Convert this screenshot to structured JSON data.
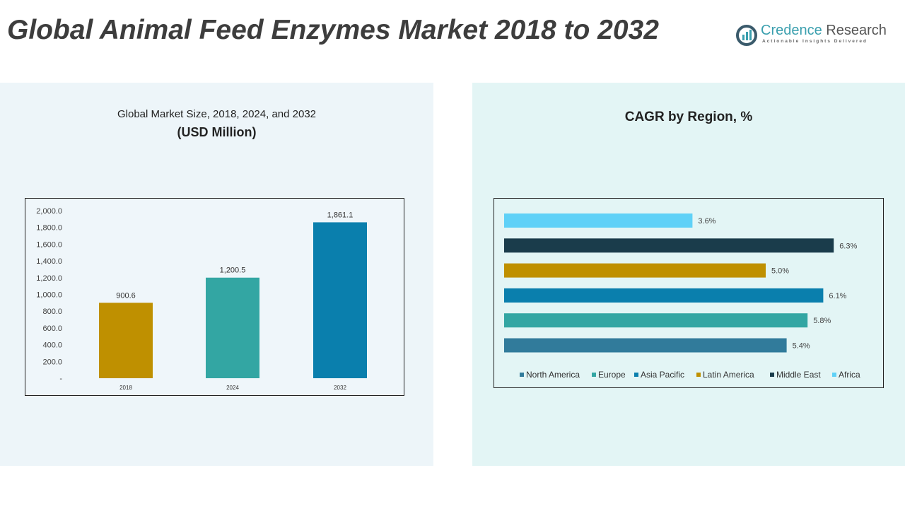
{
  "header": {
    "title": "Global Animal Feed Enzymes Market 2018 to 2032"
  },
  "logo": {
    "name_part1": "Credence",
    "name_part2": " Research",
    "tagline": "Actionable Insights Delivered"
  },
  "left_panel": {
    "title": "Global Market Size, 2018, 2024, and 2032",
    "subtitle": "(USD Million)"
  },
  "right_panel": {
    "title": "CAGR by Region, %"
  },
  "chart_data": [
    {
      "type": "bar",
      "title": "Global Market Size, 2018, 2024, and 2032 (USD Million)",
      "categories": [
        "2018",
        "2024",
        "2032"
      ],
      "values": [
        900.6,
        1200.5,
        1861.1
      ],
      "data_labels": [
        "900.6",
        "1,200.5",
        "1,861.1"
      ],
      "colors": [
        "#bf9000",
        "#33a6a3",
        "#0a7fad"
      ],
      "ylim": [
        0,
        2000
      ],
      "yticks": [
        "-",
        "200.0",
        "400.0",
        "600.0",
        "800.0",
        "1,000.0",
        "1,200.0",
        "1,400.0",
        "1,600.0",
        "1,800.0",
        "2,000.0"
      ]
    },
    {
      "type": "bar",
      "orientation": "horizontal",
      "title": "CAGR by Region, %",
      "series": [
        {
          "name": "North America",
          "value": 5.4,
          "label": "5.4%",
          "color": "#317b9b"
        },
        {
          "name": "Europe",
          "value": 5.8,
          "label": "5.8%",
          "color": "#33a6a3"
        },
        {
          "name": "Asia Pacific",
          "value": 6.1,
          "label": "6.1%",
          "color": "#0a7fad"
        },
        {
          "name": "Latin America",
          "value": 5.0,
          "label": "5.0%",
          "color": "#bf9000"
        },
        {
          "name": "Middle East",
          "value": 6.3,
          "label": "6.3%",
          "color": "#1a3c4b"
        },
        {
          "name": "Africa",
          "value": 3.6,
          "label": "3.6%",
          "color": "#5fd1f7"
        }
      ],
      "xlim": [
        0,
        7
      ],
      "legend": "bottom"
    }
  ]
}
